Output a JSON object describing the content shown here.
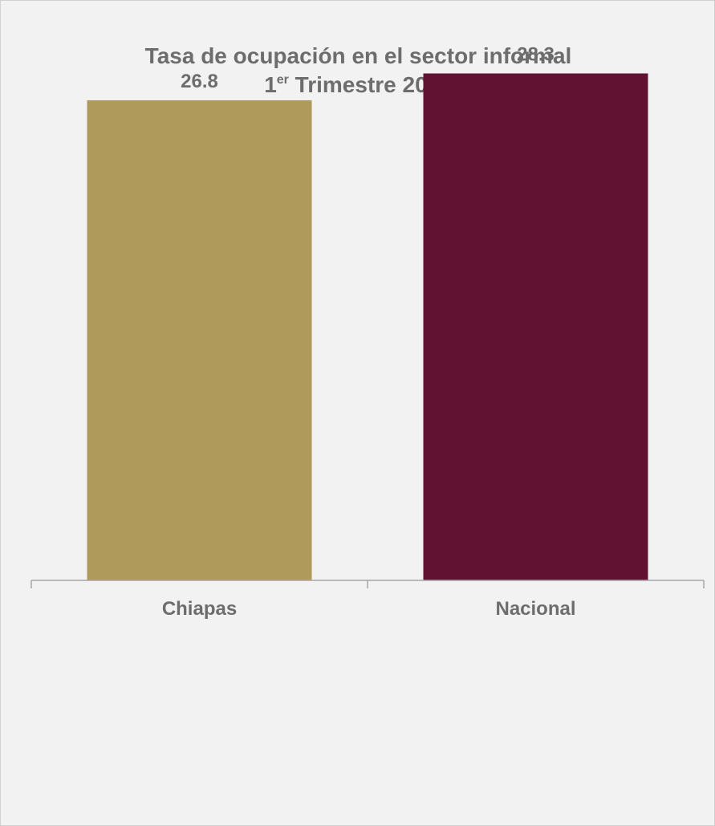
{
  "chart_data": {
    "type": "bar",
    "title": "Tasa de ocupación en el sector informal",
    "subtitle_prefix": "1",
    "subtitle_superscript": "er",
    "subtitle_rest": " Trimestre 2022",
    "categories": [
      "Chiapas",
      "Nacional"
    ],
    "values": [
      26.8,
      28.3
    ],
    "data_labels": [
      "26.8",
      "28.3"
    ],
    "colors": [
      "#b09a5b",
      "#611232"
    ],
    "ylim": [
      0,
      32.4
    ],
    "grid": false,
    "legend": "none",
    "xlabel": "",
    "ylabel": ""
  },
  "style": {
    "text_color": "#6d6d6d",
    "axis_color": "#a6a6a6",
    "background": "#f2f2f2"
  }
}
